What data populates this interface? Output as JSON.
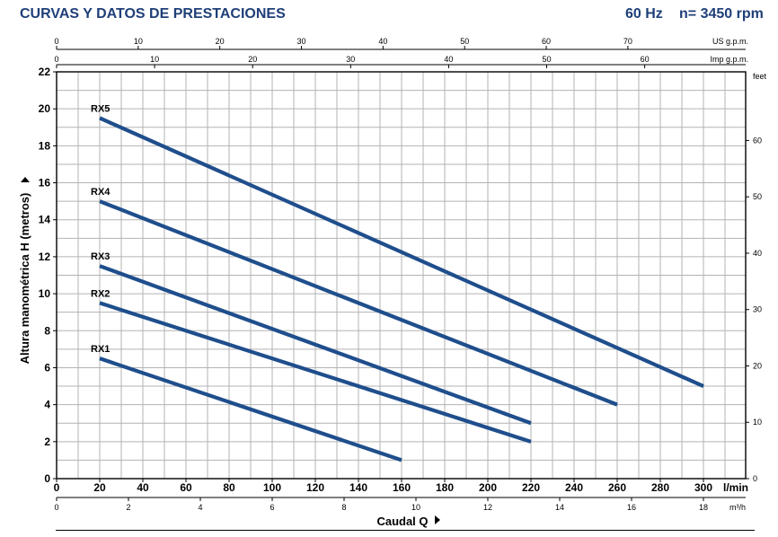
{
  "header": {
    "title": "CURVAS Y DATOS DE PRESTACIONES",
    "freq": "60 Hz",
    "speed": "n= 3450 rpm"
  },
  "chart_data": {
    "type": "line",
    "xlabel": "Caudal Q",
    "ylabel": "Altura manométrica H (metros)",
    "xlim": [
      0,
      310
    ],
    "ylim": [
      0,
      22
    ],
    "x_unit_main": "l/min",
    "x_ticks_lmin": [
      0,
      20,
      40,
      60,
      80,
      100,
      120,
      140,
      160,
      180,
      200,
      220,
      240,
      260,
      280,
      300
    ],
    "y_ticks_m": [
      0,
      2,
      4,
      6,
      8,
      10,
      12,
      14,
      16,
      18,
      20,
      22
    ],
    "secondary_axes": {
      "us_gpm": {
        "label": "US g.p.m.",
        "ticks": [
          0,
          10,
          20,
          30,
          40,
          50,
          60,
          70
        ]
      },
      "imp_gpm": {
        "label": "Imp g.p.m.",
        "ticks": [
          0,
          10,
          20,
          30,
          40,
          50,
          60
        ]
      },
      "m3h": {
        "label": "m³/h",
        "ticks": [
          0,
          2,
          4,
          6,
          8,
          10,
          12,
          14,
          16,
          18
        ]
      },
      "feet": {
        "label": "feet",
        "ticks": [
          0,
          10,
          20,
          30,
          40,
          50,
          60
        ]
      }
    },
    "grid": true,
    "series_color": "#1f4e8c",
    "series": [
      {
        "name": "RX1",
        "x": [
          20,
          160
        ],
        "y": [
          6.5,
          1.0
        ]
      },
      {
        "name": "RX2",
        "x": [
          20,
          220
        ],
        "y": [
          9.5,
          2.0
        ]
      },
      {
        "name": "RX3",
        "x": [
          20,
          220
        ],
        "y": [
          11.5,
          3.0
        ]
      },
      {
        "name": "RX4",
        "x": [
          20,
          260
        ],
        "y": [
          15.0,
          4.0
        ]
      },
      {
        "name": "RX5",
        "x": [
          20,
          300
        ],
        "y": [
          19.5,
          5.0
        ]
      }
    ]
  }
}
